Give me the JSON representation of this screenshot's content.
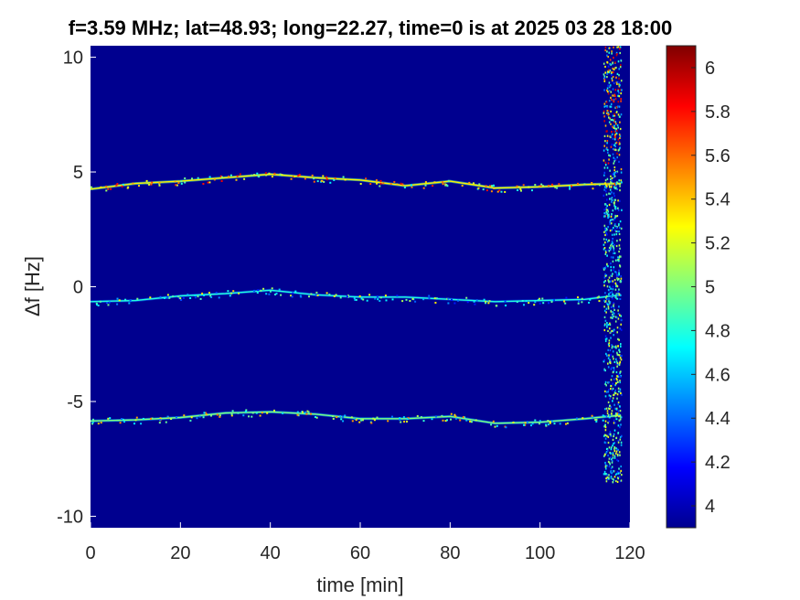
{
  "chart_data": {
    "type": "heatmap",
    "title": "f=3.59 MHz;  lat=48.93; long=22.27, time=0 is at 2025 03 28 18:00",
    "xlabel": "time [min]",
    "ylabel": "Δf [Hz]",
    "xlim": [
      0,
      120
    ],
    "ylim": [
      -10.5,
      10.5
    ],
    "xticks": [
      0,
      20,
      40,
      60,
      80,
      100,
      120
    ],
    "yticks": [
      -10,
      -5,
      0,
      5,
      10
    ],
    "colorbar": {
      "range": [
        3.9,
        6.1
      ],
      "ticks": [
        4,
        4.2,
        4.4,
        4.6,
        4.8,
        5,
        5.2,
        5.4,
        5.6,
        5.8,
        6
      ],
      "colormap": "jet"
    },
    "background_value": 3.95,
    "traces": [
      {
        "points": [
          [
            0,
            4.25
          ],
          [
            10,
            4.5
          ],
          [
            20,
            4.6
          ],
          [
            30,
            4.75
          ],
          [
            40,
            4.9
          ],
          [
            50,
            4.75
          ],
          [
            60,
            4.65
          ],
          [
            70,
            4.4
          ],
          [
            80,
            4.6
          ],
          [
            90,
            4.3
          ],
          [
            100,
            4.35
          ],
          [
            110,
            4.45
          ],
          [
            118,
            4.5
          ]
        ],
        "intensity": 5.3
      },
      {
        "points": [
          [
            0,
            -0.65
          ],
          [
            10,
            -0.6
          ],
          [
            20,
            -0.4
          ],
          [
            30,
            -0.3
          ],
          [
            40,
            -0.15
          ],
          [
            50,
            -0.35
          ],
          [
            60,
            -0.45
          ],
          [
            70,
            -0.45
          ],
          [
            80,
            -0.55
          ],
          [
            90,
            -0.65
          ],
          [
            100,
            -0.6
          ],
          [
            110,
            -0.55
          ],
          [
            118,
            -0.35
          ]
        ],
        "intensity": 4.8
      },
      {
        "points": [
          [
            0,
            -5.85
          ],
          [
            10,
            -5.8
          ],
          [
            20,
            -5.7
          ],
          [
            30,
            -5.5
          ],
          [
            40,
            -5.45
          ],
          [
            50,
            -5.55
          ],
          [
            60,
            -5.75
          ],
          [
            70,
            -5.75
          ],
          [
            80,
            -5.65
          ],
          [
            90,
            -5.95
          ],
          [
            100,
            -5.9
          ],
          [
            110,
            -5.75
          ],
          [
            118,
            -5.6
          ]
        ],
        "intensity": 5.0
      }
    ],
    "noise_band": {
      "x_range": [
        114,
        118
      ],
      "y_range": [
        -8.5,
        10.5
      ],
      "intensity": 5.4
    }
  }
}
